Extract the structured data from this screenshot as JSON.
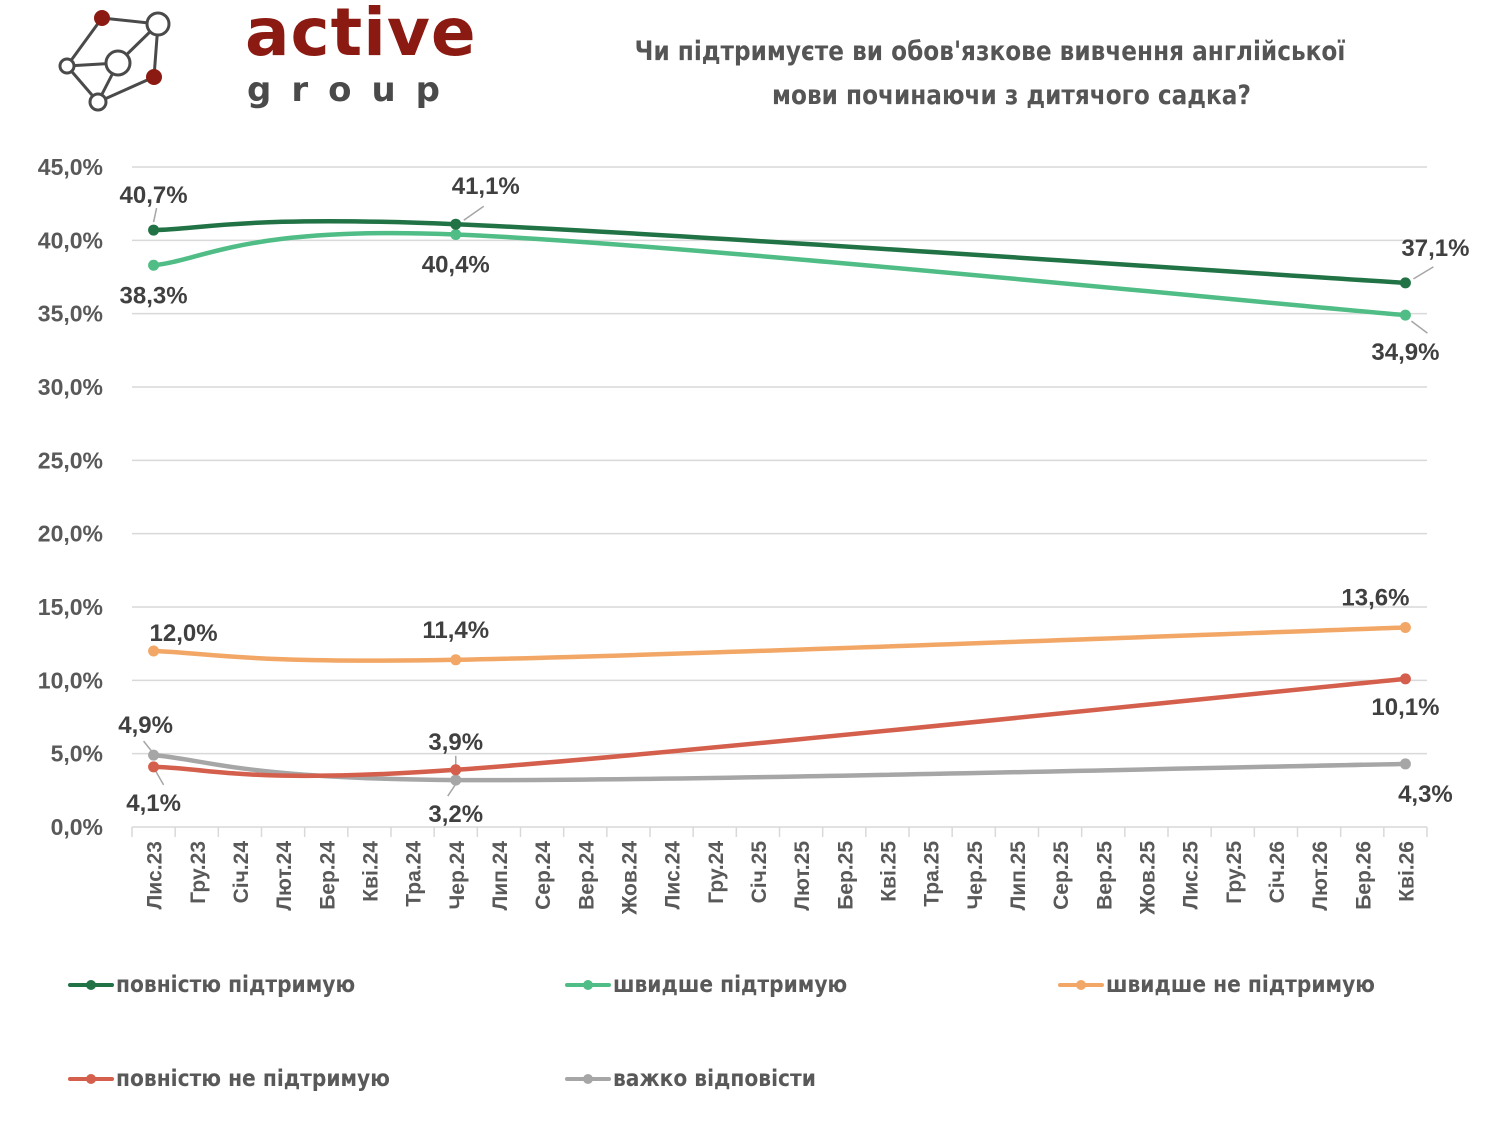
{
  "logo": {
    "main": "active",
    "sub": "group",
    "colors": {
      "brand_red": "#8b1a12",
      "node_gray": "#4a4a4a"
    }
  },
  "chart_data": {
    "type": "line",
    "title": "Чи підтримуєте ви обов'язкове вивчення англійської мови починаючи з дитячого садка?",
    "title_lines": [
      "Чи підтримуєте ви обов'язкове вивчення англійської",
      "мови починаючи з дитячого садка?"
    ],
    "xlabel": "",
    "ylabel": "",
    "ylim": [
      0,
      45
    ],
    "yticks": [
      0,
      5,
      10,
      15,
      20,
      25,
      30,
      35,
      40,
      45
    ],
    "ytick_labels": [
      "0,0%",
      "5,0%",
      "10,0%",
      "15,0%",
      "20,0%",
      "25,0%",
      "30,0%",
      "35,0%",
      "40,0%",
      "45,0%"
    ],
    "grid": true,
    "smooth": true,
    "legend_position": "bottom",
    "categories": [
      "Лис.23",
      "Гру.23",
      "Січ.24",
      "Лют.24",
      "Бер.24",
      "Кві.24",
      "Тра.24",
      "Чер.24",
      "Лип.24",
      "Сер.24",
      "Вер.24",
      "Жов.24",
      "Лис.24",
      "Гру.24",
      "Січ.25",
      "Лют.25",
      "Бер.25",
      "Кві.25",
      "Тра.25",
      "Чер.25",
      "Лип.25",
      "Сер.25",
      "Вер.25",
      "Жов.25",
      "Лис.25",
      "Гру.25",
      "Січ.26",
      "Лют.26",
      "Бер.26",
      "Кві.26"
    ],
    "series": [
      {
        "name": "повністю підтримую",
        "color": "#217346",
        "points": [
          {
            "x": "Лис.23",
            "y": 40.7,
            "label": "40,7%"
          },
          {
            "x": "Чер.24",
            "y": 41.1,
            "label": "41,1%"
          },
          {
            "x": "Кві.26",
            "y": 37.1,
            "label": "37,1%"
          }
        ]
      },
      {
        "name": "швидше підтримую",
        "color": "#4fbd85",
        "points": [
          {
            "x": "Лис.23",
            "y": 38.3,
            "label": "38,3%"
          },
          {
            "x": "Чер.24",
            "y": 40.4,
            "label": "40,4%"
          },
          {
            "x": "Кві.26",
            "y": 34.9,
            "label": "34,9%"
          }
        ]
      },
      {
        "name": "швидше не підтримую",
        "color": "#f2a766",
        "points": [
          {
            "x": "Лис.23",
            "y": 12.0,
            "label": "12,0%"
          },
          {
            "x": "Чер.24",
            "y": 11.4,
            "label": "11,4%"
          },
          {
            "x": "Кві.26",
            "y": 13.6,
            "label": "13,6%"
          }
        ]
      },
      {
        "name": "повністю не підтримую",
        "color": "#d45f4c",
        "points": [
          {
            "x": "Лис.23",
            "y": 4.1,
            "label": "4,1%"
          },
          {
            "x": "Чер.24",
            "y": 3.9,
            "label": "3,9%"
          },
          {
            "x": "Кві.26",
            "y": 10.1,
            "label": "10,1%"
          }
        ]
      },
      {
        "name": "важко відповісти",
        "color": "#a6a6a6",
        "points": [
          {
            "x": "Лис.23",
            "y": 4.9,
            "label": "4,9%"
          },
          {
            "x": "Чер.24",
            "y": 3.2,
            "label": "3,2%"
          },
          {
            "x": "Кві.26",
            "y": 4.3,
            "label": "4,3%"
          }
        ]
      }
    ]
  }
}
